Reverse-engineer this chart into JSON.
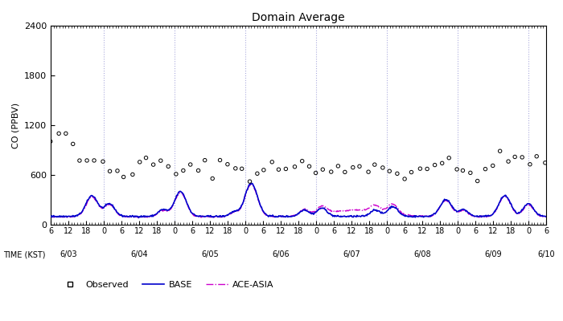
{
  "title": "Domain Average",
  "ylabel": "CO (PPBV)",
  "xlabel": "TIME (KST)",
  "ylim": [
    0,
    2400
  ],
  "yticks": [
    0,
    600,
    1200,
    1800,
    2400
  ],
  "date_labels": [
    "6/03",
    "6/04",
    "6/05",
    "6/06",
    "6/07",
    "6/08",
    "6/09",
    "6/10"
  ],
  "obs_color": "#000000",
  "base_color": "#0000cc",
  "ace_color": "#cc00cc",
  "background": "#ffffff",
  "grid_color": "#aaaadd"
}
